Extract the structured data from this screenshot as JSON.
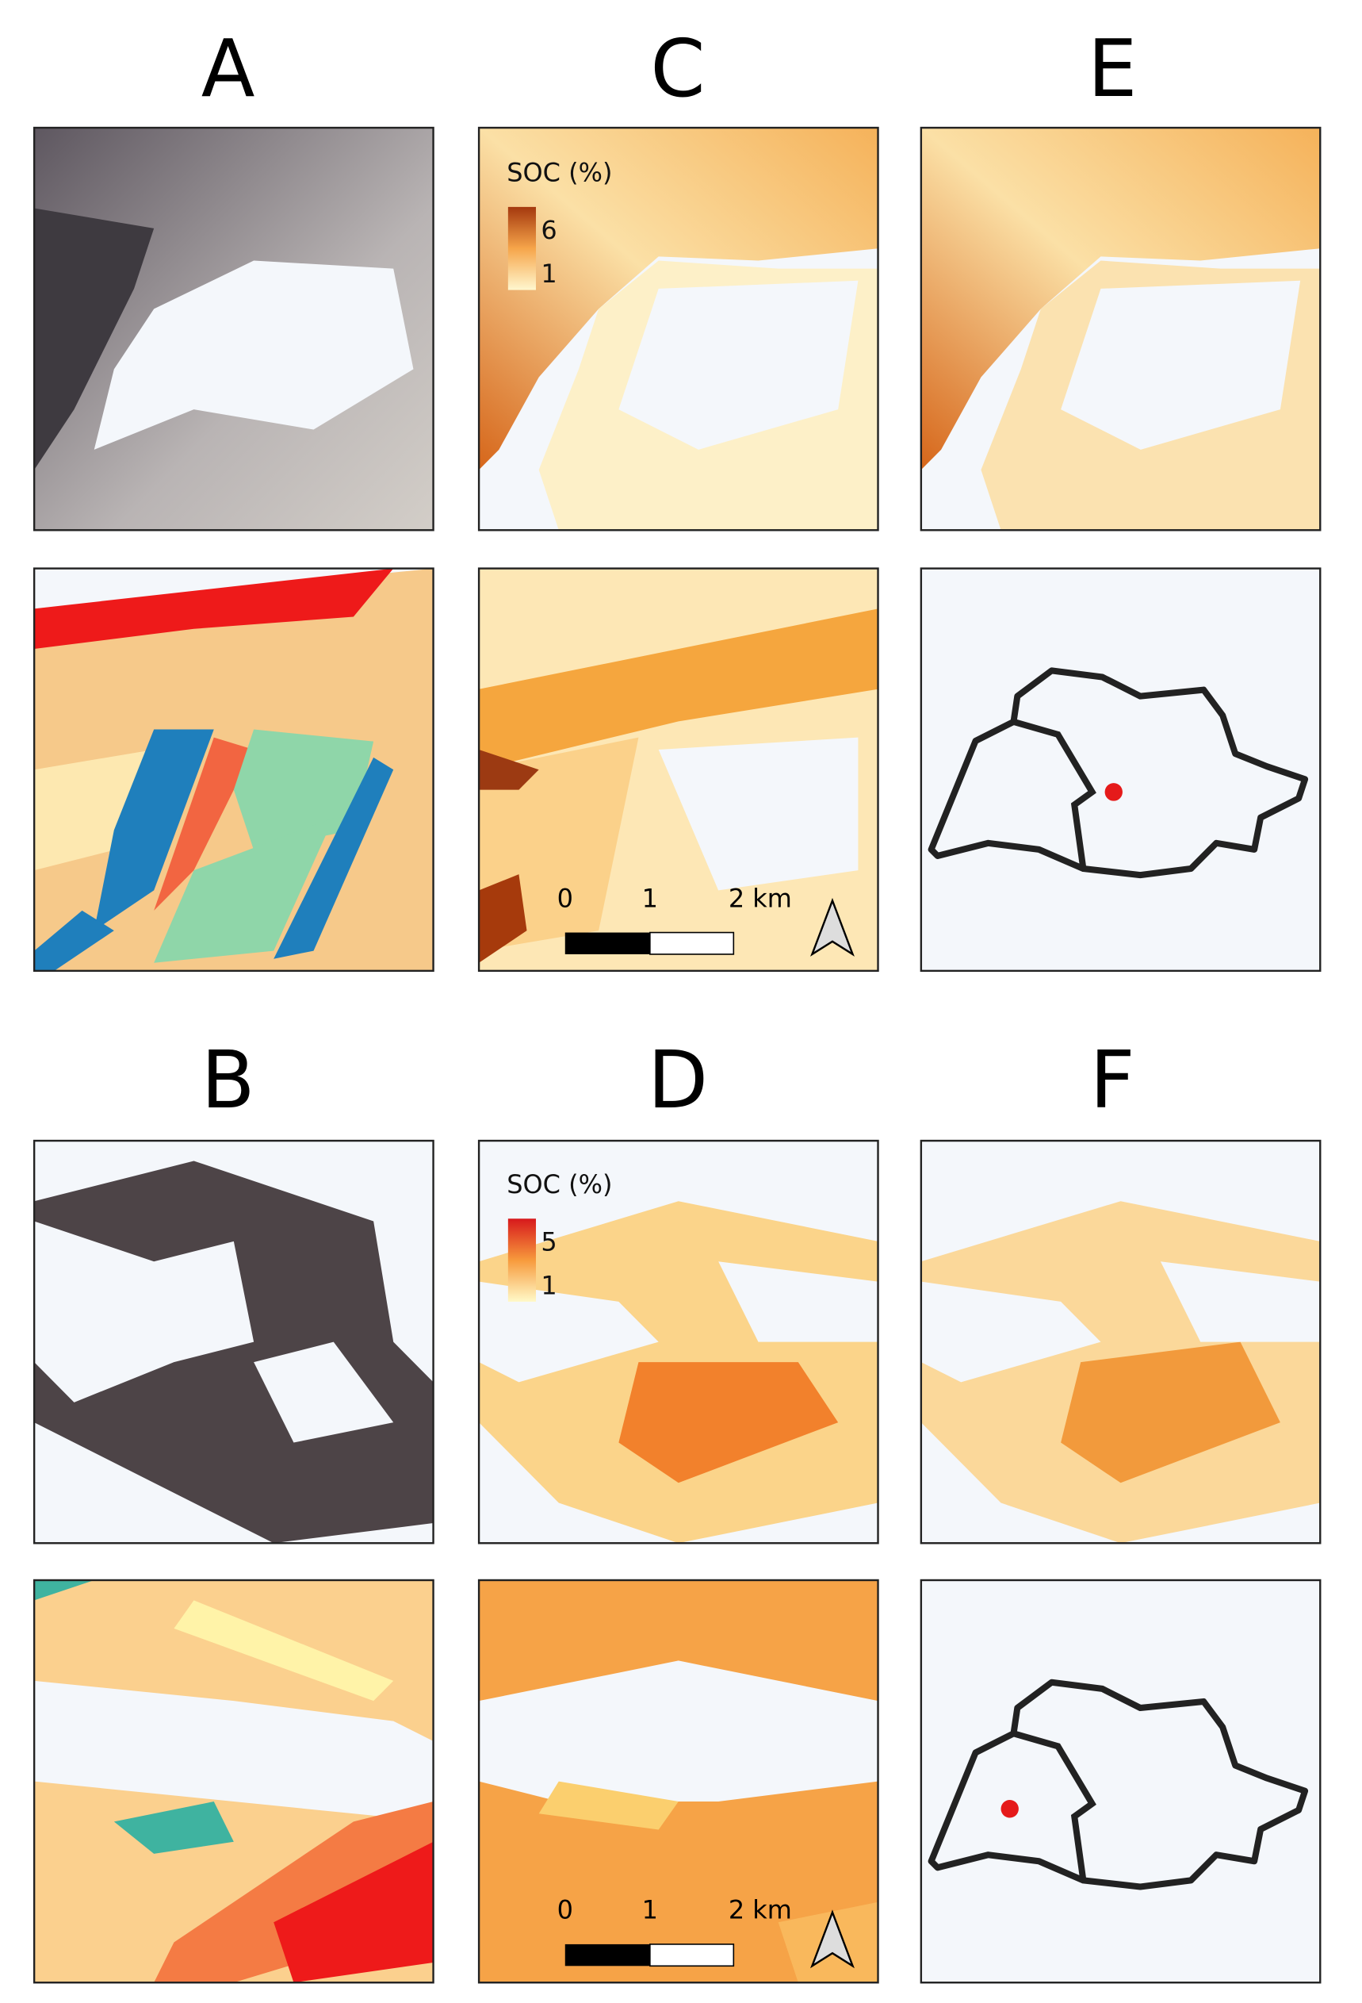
{
  "panels": {
    "a": "A",
    "b": "B",
    "c": "C",
    "d": "D",
    "e": "E",
    "f": "F"
  },
  "legends": [
    {
      "title": "SOC (%)",
      "max": 6,
      "min": 1
    },
    {
      "title": "SOC (%)",
      "max": 5,
      "min": 1
    }
  ],
  "scale_bars": [
    {
      "ticks": [
        "0",
        "1",
        "2 km"
      ]
    },
    {
      "ticks": [
        "0",
        "1",
        "2 km"
      ]
    }
  ]
}
